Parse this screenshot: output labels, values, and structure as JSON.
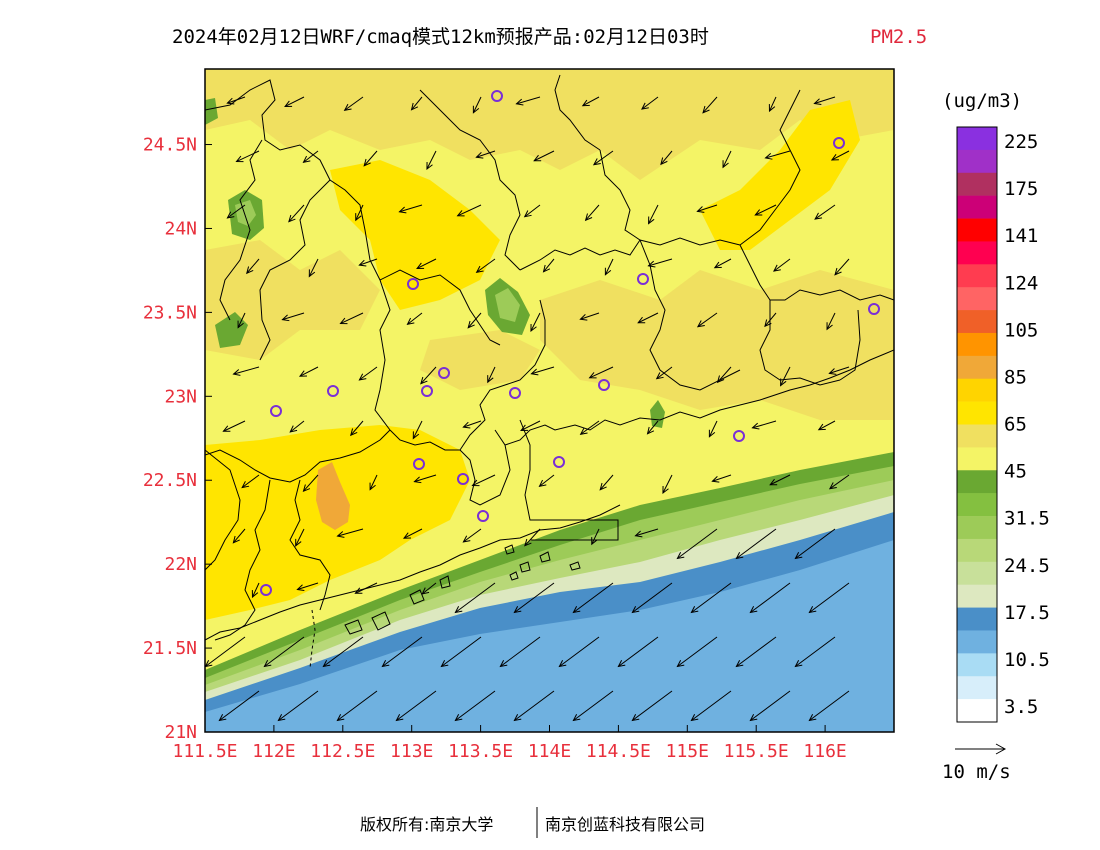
{
  "title": {
    "main": "2024年02月12日WRF/cmaq模式12km预报产品:02月12日03时",
    "pollutant": "PM2.5"
  },
  "map": {
    "lon_range": [
      111.5,
      116.5
    ],
    "lat_range": [
      21.0,
      24.95
    ],
    "x_ticks": [
      "111.5E",
      "112E",
      "112.5E",
      "113E",
      "113.5E",
      "114E",
      "114.5E",
      "115E",
      "115.5E",
      "116E"
    ],
    "y_ticks": [
      "21N",
      "21.5N",
      "22N",
      "22.5N",
      "23N",
      "23.5N",
      "24N",
      "24.5N"
    ],
    "tick_color": "#e8303c"
  },
  "colorbar": {
    "unit": "(ug/m3)",
    "colors": [
      "#ffffff",
      "#d7eefa",
      "#a9dcf4",
      "#6fb1e0",
      "#4a8fc8",
      "#dde8c0",
      "#c8e09a",
      "#b8d878",
      "#9dcb58",
      "#84c040",
      "#6aa832",
      "#f4f466",
      "#f0e060",
      "#ffe500",
      "#ffd400",
      "#f0a838",
      "#ff9400",
      "#f06028",
      "#ff6464",
      "#ff3c50",
      "#ff0050",
      "#ff0000",
      "#cc0077",
      "#b03060",
      "#a030c8",
      "#8a30e0"
    ],
    "labels": [
      "3.5",
      "10.5",
      "17.5",
      "24.5",
      "31.5",
      "45",
      "65",
      "85",
      "105",
      "124",
      "141",
      "175",
      "225"
    ]
  },
  "wind_legend": {
    "label": "10 m/s"
  },
  "footer": {
    "copyright": "版权所有:南京大学",
    "company": "南京创蓝科技有限公司"
  }
}
